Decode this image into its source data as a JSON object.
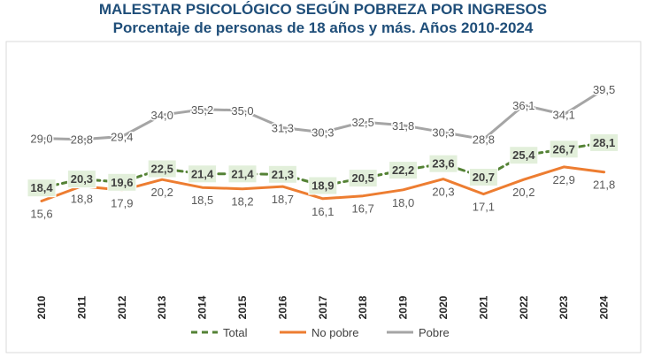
{
  "chart_data": {
    "type": "line",
    "title": "MALESTAR PSICOLÓGICO SEGÚN POBREZA POR INGRESOS",
    "subtitle": "Porcentaje de personas de 18 años y más. Años 2010-2024",
    "x": [
      "2010",
      "2011",
      "2012",
      "2013",
      "2014",
      "2015",
      "2016",
      "2017",
      "2018",
      "2019",
      "2020",
      "2021",
      "2022",
      "2023",
      "2024"
    ],
    "ylim": [
      0,
      45
    ],
    "grid": false,
    "legend_position": "bottom",
    "series": [
      {
        "name": "Total",
        "color": "#548235",
        "style": "dashed",
        "values": [
          18.4,
          20.3,
          19.6,
          22.5,
          21.4,
          21.4,
          21.3,
          18.9,
          20.5,
          22.2,
          23.6,
          20.7,
          25.4,
          26.7,
          28.1
        ],
        "labels": [
          "18,4",
          "20,3",
          "19,6",
          "22,5",
          "21,4",
          "21,4",
          "21,3",
          "18,9",
          "20,5",
          "22,2",
          "23,6",
          "20,7",
          "25,4",
          "26,7",
          "28,1"
        ]
      },
      {
        "name": "No pobre",
        "color": "#ed7d31",
        "style": "solid",
        "values": [
          15.6,
          18.8,
          17.9,
          20.2,
          18.5,
          18.2,
          18.7,
          16.1,
          16.7,
          18.0,
          20.3,
          17.1,
          20.2,
          22.9,
          21.8
        ],
        "labels": [
          "15,6",
          "18,8",
          "17,9",
          "20,2",
          "18,5",
          "18,2",
          "18,7",
          "16,1",
          "16,7",
          "18,0",
          "20,3",
          "17,1",
          "20,2",
          "22,9",
          "21,8"
        ]
      },
      {
        "name": "Pobre",
        "color": "#a5a5a5",
        "style": "solid",
        "values": [
          29.0,
          28.8,
          29.4,
          34.0,
          35.2,
          35.0,
          31.3,
          30.3,
          32.5,
          31.8,
          30.3,
          28.8,
          36.1,
          34.1,
          39.5
        ],
        "labels": [
          "29,0",
          "28,8",
          "29,4",
          "34,0",
          "35,2",
          "35,0",
          "31,3",
          "30,3",
          "32,5",
          "31,8",
          "30,3",
          "28,8",
          "36,1",
          "34,1",
          "39,5"
        ]
      }
    ]
  }
}
